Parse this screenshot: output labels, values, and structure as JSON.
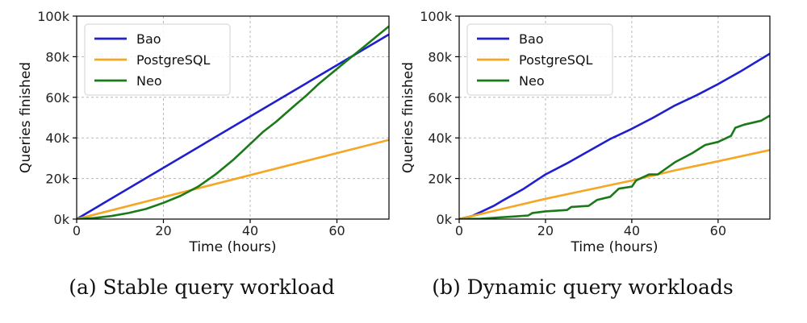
{
  "chart_data": [
    {
      "type": "line",
      "caption": "(a) Stable query workload",
      "xlabel": "Time (hours)",
      "ylabel": "Queries finished",
      "xlim": [
        0,
        72
      ],
      "ylim": [
        0,
        100000
      ],
      "xticks": [
        0,
        20,
        40,
        60
      ],
      "xtick_labels": [
        "0",
        "20",
        "40",
        "60"
      ],
      "yticks": [
        0,
        20000,
        40000,
        60000,
        80000,
        100000
      ],
      "ytick_labels": [
        "0k",
        "20k",
        "40k",
        "60k",
        "80k",
        "100k"
      ],
      "grid": true,
      "legend_position": "top-left",
      "series": [
        {
          "name": "Bao",
          "color": "#1f1fcf",
          "x": [
            0,
            72
          ],
          "y": [
            0,
            91000
          ]
        },
        {
          "name": "PostgreSQL",
          "color": "#f5a623",
          "x": [
            0,
            72
          ],
          "y": [
            0,
            39000
          ]
        },
        {
          "name": "Neo",
          "color": "#1a7a1a",
          "x": [
            0,
            4,
            8,
            12,
            16,
            20,
            24,
            28,
            32,
            36,
            40,
            43,
            46,
            50,
            53,
            56,
            60,
            64,
            68,
            72
          ],
          "y": [
            0,
            500,
            1500,
            3000,
            5000,
            8000,
            11500,
            16000,
            22000,
            29000,
            37000,
            43000,
            48000,
            55500,
            61000,
            67000,
            74000,
            81000,
            88000,
            95000
          ]
        }
      ]
    },
    {
      "type": "line",
      "caption": "(b) Dynamic query workloads",
      "xlabel": "Time (hours)",
      "ylabel": "Queries finished",
      "xlim": [
        0,
        72
      ],
      "ylim": [
        0,
        100000
      ],
      "xticks": [
        0,
        20,
        40,
        60
      ],
      "xtick_labels": [
        "0",
        "20",
        "40",
        "60"
      ],
      "yticks": [
        0,
        20000,
        40000,
        60000,
        80000,
        100000
      ],
      "ytick_labels": [
        "0k",
        "20k",
        "40k",
        "60k",
        "80k",
        "100k"
      ],
      "grid": true,
      "legend_position": "top-left",
      "series": [
        {
          "name": "Bao",
          "color": "#1f1fcf",
          "x": [
            0,
            3,
            5,
            8,
            10,
            15,
            20,
            25,
            30,
            35,
            40,
            45,
            50,
            55,
            60,
            65,
            72
          ],
          "y": [
            0,
            1500,
            3500,
            6500,
            9000,
            15000,
            22000,
            27500,
            33500,
            39500,
            44500,
            50000,
            56000,
            61000,
            66500,
            72500,
            81500
          ]
        },
        {
          "name": "PostgreSQL",
          "color": "#f5a623",
          "x": [
            0,
            10,
            20,
            30,
            40,
            50,
            60,
            72
          ],
          "y": [
            0,
            5000,
            10000,
            14500,
            19000,
            24000,
            28500,
            34000
          ]
        },
        {
          "name": "Neo",
          "color": "#1a7a1a",
          "x": [
            0,
            5,
            9,
            13,
            16,
            17,
            20,
            25,
            26,
            30,
            32,
            35,
            37,
            40,
            41,
            44,
            46,
            48,
            50,
            54,
            57,
            60,
            63,
            64,
            66,
            68,
            70,
            72
          ],
          "y": [
            0,
            200,
            800,
            1300,
            1800,
            3000,
            3800,
            4500,
            6000,
            6500,
            9500,
            11000,
            15000,
            16000,
            19000,
            22000,
            22000,
            25000,
            28000,
            32500,
            36500,
            38000,
            41000,
            45000,
            46500,
            47500,
            48500,
            51000
          ]
        }
      ]
    }
  ]
}
